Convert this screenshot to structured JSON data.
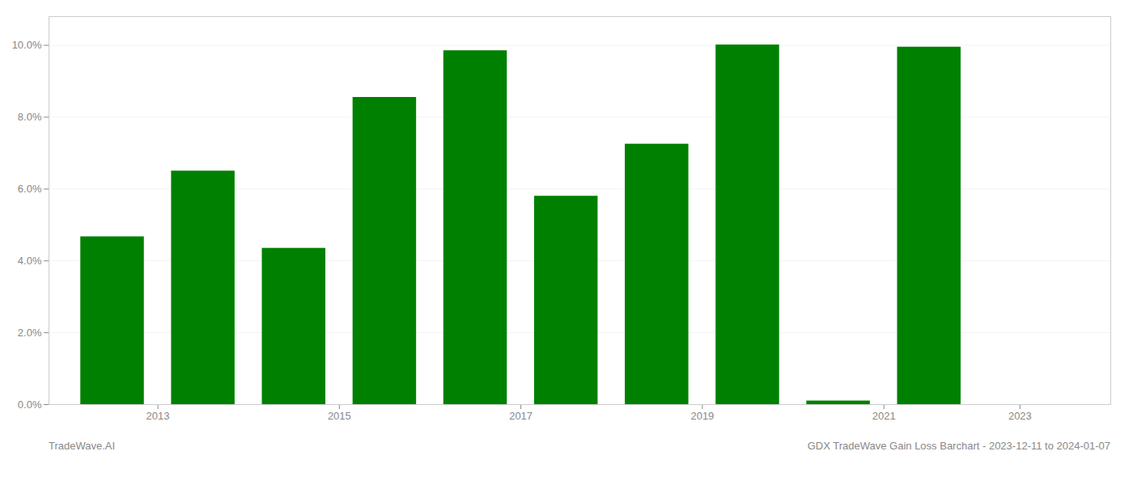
{
  "chart_data": {
    "type": "bar",
    "x": [
      2013,
      2014,
      2015,
      2016,
      2017,
      2018,
      2019,
      2020,
      2021,
      2022,
      2023
    ],
    "values": [
      0.0467,
      0.065,
      0.0435,
      0.0855,
      0.0985,
      0.058,
      0.0725,
      0.1001,
      0.001,
      0.0995,
      0.0
    ],
    "color": "#008000",
    "xlim": [
      2012.3,
      2024.0
    ],
    "xticks": [
      {
        "value": 2013.5,
        "label": "2013"
      },
      {
        "value": 2015.5,
        "label": "2015"
      },
      {
        "value": 2017.5,
        "label": "2017"
      },
      {
        "value": 2019.5,
        "label": "2019"
      },
      {
        "value": 2021.5,
        "label": "2021"
      },
      {
        "value": 2023.0,
        "label": "2023"
      }
    ],
    "ylim": [
      0,
      0.108
    ],
    "yticks": [
      {
        "value": 0.0,
        "label": "0.0%"
      },
      {
        "value": 0.02,
        "label": "2.0%"
      },
      {
        "value": 0.04,
        "label": "4.0%"
      },
      {
        "value": 0.06,
        "label": "6.0%"
      },
      {
        "value": 0.08,
        "label": "8.0%"
      },
      {
        "value": 0.1,
        "label": "10.0%"
      }
    ],
    "grid": true,
    "annotations": [
      "TradeWave.AI",
      "GDX TradeWave Gain Loss Barchart - 2023-12-11 to 2024-01-07"
    ]
  }
}
